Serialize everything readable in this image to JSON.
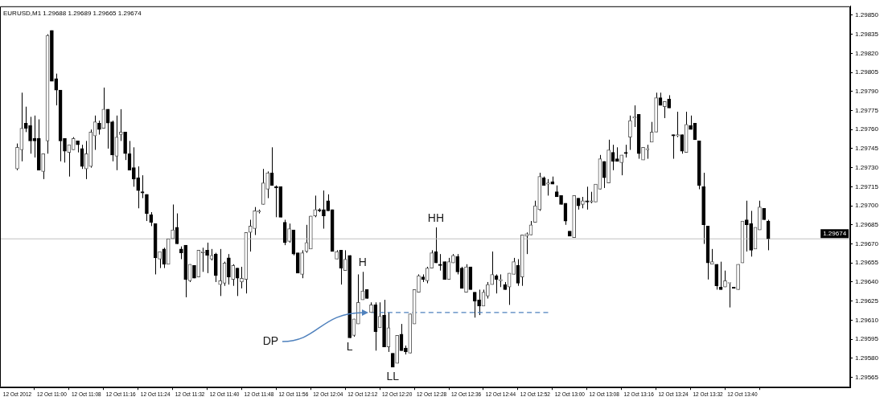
{
  "chart_data": {
    "type": "candlestick",
    "title": "EURUSD,M1 1.29688 1.29689 1.29665 1.29674",
    "color": "#000000",
    "x": [
      "2012-10-12T10:52",
      "2012-10-12T10:53",
      "2012-10-12T10:54",
      "2012-10-12T10:55",
      "2012-10-12T10:56",
      "2012-10-12T10:57",
      "2012-10-12T10:58",
      "2012-10-12T10:59",
      "2012-10-12T11:00",
      "2012-10-12T11:01",
      "2012-10-12T11:02",
      "2012-10-12T11:03",
      "2012-10-12T11:04",
      "2012-10-12T11:05",
      "2012-10-12T11:06",
      "2012-10-12T11:07",
      "2012-10-12T11:08",
      "2012-10-12T11:09",
      "2012-10-12T11:10",
      "2012-10-12T11:11",
      "2012-10-12T11:12",
      "2012-10-12T11:13",
      "2012-10-12T11:14",
      "2012-10-12T11:15",
      "2012-10-12T11:16",
      "2012-10-12T11:17",
      "2012-10-12T11:18",
      "2012-10-12T11:19",
      "2012-10-12T11:20",
      "2012-10-12T11:21",
      "2012-10-12T11:22",
      "2012-10-12T11:23",
      "2012-10-12T11:24",
      "2012-10-12T11:25",
      "2012-10-12T11:26",
      "2012-10-12T11:27",
      "2012-10-12T11:28",
      "2012-10-12T11:29",
      "2012-10-12T11:30",
      "2012-10-12T11:31",
      "2012-10-12T11:32",
      "2012-10-12T11:33",
      "2012-10-12T11:34",
      "2012-10-12T11:35",
      "2012-10-12T11:36",
      "2012-10-12T11:37",
      "2012-10-12T11:38",
      "2012-10-12T11:39",
      "2012-10-12T11:40",
      "2012-10-12T11:41",
      "2012-10-12T11:42",
      "2012-10-12T11:43",
      "2012-10-12T11:44",
      "2012-10-12T11:45",
      "2012-10-12T11:46",
      "2012-10-12T11:47",
      "2012-10-12T11:48",
      "2012-10-12T11:49",
      "2012-10-12T11:50",
      "2012-10-12T11:51",
      "2012-10-12T11:52",
      "2012-10-12T11:53",
      "2012-10-12T11:54",
      "2012-10-12T11:55",
      "2012-10-12T11:56",
      "2012-10-12T11:57",
      "2012-10-12T11:58",
      "2012-10-12T11:59",
      "2012-10-12T12:00",
      "2012-10-12T12:01",
      "2012-10-12T12:02",
      "2012-10-12T12:03",
      "2012-10-12T12:04",
      "2012-10-12T12:05",
      "2012-10-12T12:06",
      "2012-10-12T12:07",
      "2012-10-12T12:08",
      "2012-10-12T12:09",
      "2012-10-12T12:10",
      "2012-10-12T12:11",
      "2012-10-12T12:12",
      "2012-10-12T12:13",
      "2012-10-12T12:14",
      "2012-10-12T12:15",
      "2012-10-12T12:16",
      "2012-10-12T12:17",
      "2012-10-12T12:18",
      "2012-10-12T12:19",
      "2012-10-12T12:20",
      "2012-10-12T12:21",
      "2012-10-12T12:22",
      "2012-10-12T12:23",
      "2012-10-12T12:24",
      "2012-10-12T12:25",
      "2012-10-12T12:26",
      "2012-10-12T12:27",
      "2012-10-12T12:28",
      "2012-10-12T12:29",
      "2012-10-12T12:30",
      "2012-10-12T12:31",
      "2012-10-12T12:32",
      "2012-10-12T12:33",
      "2012-10-12T12:34",
      "2012-10-12T12:35",
      "2012-10-12T12:36",
      "2012-10-12T12:37",
      "2012-10-12T12:38",
      "2012-10-12T12:39",
      "2012-10-12T12:40",
      "2012-10-12T12:41",
      "2012-10-12T12:42",
      "2012-10-12T12:43",
      "2012-10-12T12:44",
      "2012-10-12T12:45",
      "2012-10-12T12:46",
      "2012-10-12T12:47",
      "2012-10-12T12:48",
      "2012-10-12T12:49",
      "2012-10-12T12:50",
      "2012-10-12T12:51",
      "2012-10-12T12:52",
      "2012-10-12T12:53",
      "2012-10-12T12:54",
      "2012-10-12T12:55",
      "2012-10-12T12:56",
      "2012-10-12T12:57",
      "2012-10-12T12:58",
      "2012-10-12T12:59",
      "2012-10-12T13:00",
      "2012-10-12T13:01",
      "2012-10-12T13:02",
      "2012-10-12T13:03",
      "2012-10-12T13:04",
      "2012-10-12T13:05",
      "2012-10-12T13:06",
      "2012-10-12T13:07",
      "2012-10-12T13:08",
      "2012-10-12T13:09",
      "2012-10-12T13:10",
      "2012-10-12T13:11",
      "2012-10-12T13:12",
      "2012-10-12T13:13",
      "2012-10-12T13:14",
      "2012-10-12T13:15",
      "2012-10-12T13:16",
      "2012-10-12T13:17",
      "2012-10-12T13:18",
      "2012-10-12T13:19",
      "2012-10-12T13:20",
      "2012-10-12T13:21",
      "2012-10-12T13:22",
      "2012-10-12T13:23",
      "2012-10-12T13:24",
      "2012-10-12T13:25",
      "2012-10-12T13:26",
      "2012-10-12T13:27",
      "2012-10-12T13:28",
      "2012-10-12T13:29",
      "2012-10-12T13:30",
      "2012-10-12T13:31",
      "2012-10-12T13:32",
      "2012-10-12T13:33",
      "2012-10-12T13:34",
      "2012-10-12T13:35",
      "2012-10-12T13:36",
      "2012-10-12T13:37",
      "2012-10-12T13:38",
      "2012-10-12T13:39",
      "2012-10-12T13:40",
      "2012-10-12T13:41",
      "2012-10-12T13:42",
      "2012-10-12T13:43",
      "2012-10-12T13:44",
      "2012-10-12T13:45",
      "2012-10-12T13:46"
    ],
    "ohlc": [
      [
        1.29729,
        1.29749,
        1.29728,
        1.29746
      ],
      [
        1.29744,
        1.29789,
        1.29735,
        1.29761
      ],
      [
        1.29765,
        1.29778,
        1.29758,
        1.29761
      ],
      [
        1.29763,
        1.2977,
        1.29741,
        1.29751
      ],
      [
        1.29753,
        1.29771,
        1.29738,
        1.29751
      ],
      [
        1.29753,
        1.29768,
        1.29728,
        1.29728
      ],
      [
        1.29727,
        1.29741,
        1.29721,
        1.29741
      ],
      [
        1.29751,
        1.29835,
        1.29741,
        1.29834
      ],
      [
        1.29838,
        1.29838,
        1.29798,
        1.29798
      ],
      [
        1.298,
        1.29804,
        1.29779,
        1.29791
      ],
      [
        1.29791,
        1.29791,
        1.29735,
        1.29751
      ],
      [
        1.29753,
        1.29753,
        1.29734,
        1.29743
      ],
      [
        1.29742,
        1.29748,
        1.29723,
        1.29748
      ],
      [
        1.29744,
        1.29754,
        1.29744,
        1.29753
      ],
      [
        1.29751,
        1.29751,
        1.29742,
        1.29748
      ],
      [
        1.29745,
        1.29748,
        1.29729,
        1.29731
      ],
      [
        1.29729,
        1.29751,
        1.29721,
        1.29741
      ],
      [
        1.29731,
        1.2976,
        1.2973,
        1.29758
      ],
      [
        1.29755,
        1.29771,
        1.29744,
        1.29766
      ],
      [
        1.29765,
        1.29767,
        1.29756,
        1.2976
      ],
      [
        1.29761,
        1.29793,
        1.29761,
        1.29776
      ],
      [
        1.29776,
        1.29776,
        1.29745,
        1.29765
      ],
      [
        1.29766,
        1.29767,
        1.29735,
        1.2974
      ],
      [
        1.29739,
        1.29771,
        1.29728,
        1.29754
      ],
      [
        1.29756,
        1.29776,
        1.29751,
        1.29758
      ],
      [
        1.29758,
        1.29758,
        1.29736,
        1.29741
      ],
      [
        1.29741,
        1.29751,
        1.29728,
        1.29728
      ],
      [
        1.2973,
        1.29746,
        1.29715,
        1.29721
      ],
      [
        1.29722,
        1.29731,
        1.29698,
        1.29712
      ],
      [
        1.29711,
        1.29724,
        1.29706,
        1.2971
      ],
      [
        1.29709,
        1.29709,
        1.29688,
        1.29694
      ],
      [
        1.29693,
        1.29695,
        1.29684,
        1.29687
      ],
      [
        1.29686,
        1.29686,
        1.29646,
        1.29659
      ],
      [
        1.29658,
        1.29664,
        1.29651,
        1.29664
      ],
      [
        1.29666,
        1.29667,
        1.29651,
        1.29654
      ],
      [
        1.29654,
        1.29674,
        1.29654,
        1.29674
      ],
      [
        1.29674,
        1.29701,
        1.29674,
        1.29681
      ],
      [
        1.29683,
        1.29694,
        1.2967,
        1.2967
      ],
      [
        1.29666,
        1.29668,
        1.29658,
        1.29663
      ],
      [
        1.29669,
        1.29669,
        1.29628,
        1.29642
      ],
      [
        1.29641,
        1.29654,
        1.2964,
        1.29654
      ],
      [
        1.29653,
        1.29653,
        1.29643,
        1.29643
      ],
      [
        1.29644,
        1.29665,
        1.29644,
        1.29665
      ],
      [
        1.29663,
        1.29667,
        1.29648,
        1.29664
      ],
      [
        1.29665,
        1.29671,
        1.29647,
        1.29661
      ],
      [
        1.29658,
        1.29666,
        1.29657,
        1.29661
      ],
      [
        1.29662,
        1.29663,
        1.2964,
        1.29645
      ],
      [
        1.29638,
        1.29666,
        1.29629,
        1.29641
      ],
      [
        1.29639,
        1.29656,
        1.29637,
        1.29655
      ],
      [
        1.29659,
        1.29662,
        1.29638,
        1.29644
      ],
      [
        1.29642,
        1.29654,
        1.29637,
        1.29653
      ],
      [
        1.29651,
        1.29651,
        1.29629,
        1.29643
      ],
      [
        1.2964,
        1.29652,
        1.29635,
        1.29643
      ],
      [
        1.29642,
        1.29679,
        1.29631,
        1.29679
      ],
      [
        1.29679,
        1.29689,
        1.29664,
        1.29684
      ],
      [
        1.29682,
        1.29699,
        1.29677,
        1.29696
      ],
      [
        1.29695,
        1.29697,
        1.29694,
        1.29696
      ],
      [
        1.29701,
        1.29729,
        1.29701,
        1.29718
      ],
      [
        1.29713,
        1.29727,
        1.29706,
        1.29726
      ],
      [
        1.29726,
        1.29746,
        1.29716,
        1.29716
      ],
      [
        1.29715,
        1.29716,
        1.29691,
        1.29714
      ],
      [
        1.29715,
        1.29715,
        1.29691,
        1.29691
      ],
      [
        1.29687,
        1.29689,
        1.29669,
        1.29671
      ],
      [
        1.29672,
        1.29686,
        1.29671,
        1.29682
      ],
      [
        1.29681,
        1.29681,
        1.29661,
        1.29662
      ],
      [
        1.29663,
        1.29663,
        1.29647,
        1.29647
      ],
      [
        1.29646,
        1.29665,
        1.29643,
        1.29663
      ],
      [
        1.29664,
        1.29685,
        1.29663,
        1.29671
      ],
      [
        1.29666,
        1.29692,
        1.29666,
        1.29692
      ],
      [
        1.29692,
        1.29708,
        1.29691,
        1.29697
      ],
      [
        1.29697,
        1.29698,
        1.29695,
        1.29696
      ],
      [
        1.29697,
        1.29712,
        1.29682,
        1.29692
      ],
      [
        1.29704,
        1.29709,
        1.29696,
        1.29696
      ],
      [
        1.29697,
        1.29697,
        1.29664,
        1.29664
      ],
      [
        1.29658,
        1.29665,
        1.29658,
        1.29664
      ],
      [
        1.29665,
        1.29665,
        1.29638,
        1.29651
      ],
      [
        1.29649,
        1.29665,
        1.29649,
        1.29658
      ],
      [
        1.29661,
        1.29661,
        1.29596,
        1.29596
      ],
      [
        1.29598,
        1.29611,
        1.29597,
        1.29611
      ],
      [
        1.29607,
        1.29646,
        1.29607,
        1.29624
      ],
      [
        1.29626,
        1.29648,
        1.29626,
        1.29633
      ],
      [
        1.29634,
        1.29634,
        1.29627,
        1.29627
      ],
      [
        1.29616,
        1.29624,
        1.29616,
        1.29622
      ],
      [
        1.29622,
        1.29624,
        1.29586,
        1.29601
      ],
      [
        1.29604,
        1.29624,
        1.29604,
        1.29613
      ],
      [
        1.29614,
        1.29626,
        1.29589,
        1.29589
      ],
      [
        1.29589,
        1.29616,
        1.29585,
        1.29604
      ],
      [
        1.29584,
        1.29584,
        1.29573,
        1.29573
      ],
      [
        1.29576,
        1.29598,
        1.29576,
        1.29598
      ],
      [
        1.29599,
        1.29607,
        1.29586,
        1.29586
      ],
      [
        1.29588,
        1.2959,
        1.29583,
        1.29585
      ],
      [
        1.29584,
        1.29615,
        1.29584,
        1.29615
      ],
      [
        1.29607,
        1.29634,
        1.29607,
        1.29634
      ],
      [
        1.29632,
        1.29646,
        1.29632,
        1.29645
      ],
      [
        1.29644,
        1.29646,
        1.2964,
        1.29642
      ],
      [
        1.29641,
        1.29652,
        1.29639,
        1.29651
      ],
      [
        1.29651,
        1.29665,
        1.29651,
        1.29663
      ],
      [
        1.29664,
        1.29683,
        1.29655,
        1.29655
      ],
      [
        1.29654,
        1.29662,
        1.29649,
        1.29653
      ],
      [
        1.29656,
        1.29656,
        1.29642,
        1.29642
      ],
      [
        1.29642,
        1.29659,
        1.29642,
        1.29656
      ],
      [
        1.29655,
        1.29662,
        1.29655,
        1.29661
      ],
      [
        1.2966,
        1.29662,
        1.29646,
        1.29648
      ],
      [
        1.29651,
        1.29652,
        1.29635,
        1.29635
      ],
      [
        1.29632,
        1.29654,
        1.29632,
        1.29652
      ],
      [
        1.29652,
        1.29652,
        1.29634,
        1.29634
      ],
      [
        1.29632,
        1.29632,
        1.29612,
        1.29625
      ],
      [
        1.29626,
        1.29634,
        1.29614,
        1.29621
      ],
      [
        1.29621,
        1.29634,
        1.29621,
        1.29632
      ],
      [
        1.29629,
        1.2964,
        1.29627,
        1.29638
      ],
      [
        1.29638,
        1.29664,
        1.29638,
        1.29646
      ],
      [
        1.29645,
        1.29646,
        1.29631,
        1.29642
      ],
      [
        1.29641,
        1.29646,
        1.29636,
        1.29642
      ],
      [
        1.29638,
        1.2964,
        1.29634,
        1.29634
      ],
      [
        1.29636,
        1.29647,
        1.29622,
        1.29647
      ],
      [
        1.29646,
        1.29659,
        1.29646,
        1.29656
      ],
      [
        1.29653,
        1.29658,
        1.29637,
        1.29639
      ],
      [
        1.29644,
        1.29677,
        1.29637,
        1.29677
      ],
      [
        1.29676,
        1.29679,
        1.29662,
        1.29678
      ],
      [
        1.29677,
        1.29688,
        1.29677,
        1.29685
      ],
      [
        1.29687,
        1.29704,
        1.29687,
        1.297
      ],
      [
        1.29697,
        1.29726,
        1.29696,
        1.29723
      ],
      [
        1.29722,
        1.29723,
        1.29716,
        1.29716
      ],
      [
        1.29717,
        1.29721,
        1.29708,
        1.29718
      ],
      [
        1.29719,
        1.29723,
        1.29717,
        1.29717
      ],
      [
        1.29711,
        1.29716,
        1.29707,
        1.29707
      ],
      [
        1.29708,
        1.29708,
        1.29701,
        1.29701
      ],
      [
        1.29702,
        1.29702,
        1.29685,
        1.29688
      ],
      [
        1.2968,
        1.2968,
        1.29676,
        1.29676
      ],
      [
        1.29675,
        1.29708,
        1.29675,
        1.29708
      ],
      [
        1.29706,
        1.29706,
        1.29697,
        1.297
      ],
      [
        1.29701,
        1.29707,
        1.29698,
        1.29704
      ],
      [
        1.29704,
        1.29715,
        1.29697,
        1.29703
      ],
      [
        1.29703,
        1.29711,
        1.29702,
        1.29704
      ],
      [
        1.29703,
        1.29717,
        1.29703,
        1.29717
      ],
      [
        1.29713,
        1.2974,
        1.29713,
        1.29737
      ],
      [
        1.29735,
        1.29735,
        1.29714,
        1.29722
      ],
      [
        1.29718,
        1.29752,
        1.29718,
        1.29744
      ],
      [
        1.29742,
        1.29748,
        1.29728,
        1.29735
      ],
      [
        1.29737,
        1.29746,
        1.29735,
        1.29735
      ],
      [
        1.29734,
        1.2974,
        1.29724,
        1.2974
      ],
      [
        1.29742,
        1.29748,
        1.29738,
        1.29741
      ],
      [
        1.29754,
        1.29771,
        1.29744,
        1.29767
      ],
      [
        1.29769,
        1.29779,
        1.29762,
        1.2977
      ],
      [
        1.29772,
        1.29772,
        1.29737,
        1.29741
      ],
      [
        1.29736,
        1.29746,
        1.29736,
        1.29746
      ],
      [
        1.29744,
        1.29748,
        1.29737,
        1.29745
      ],
      [
        1.2975,
        1.29766,
        1.2975,
        1.29758
      ],
      [
        1.29758,
        1.29789,
        1.29758,
        1.29785
      ],
      [
        1.29785,
        1.29789,
        1.29779,
        1.29779
      ],
      [
        1.29778,
        1.29782,
        1.29769,
        1.29782
      ],
      [
        1.29784,
        1.29787,
        1.29777,
        1.29777
      ],
      [
        1.29756,
        1.29756,
        1.29737,
        1.29755
      ],
      [
        1.29755,
        1.29774,
        1.29754,
        1.29756
      ],
      [
        1.29756,
        1.29756,
        1.29741,
        1.29743
      ],
      [
        1.29742,
        1.29774,
        1.29742,
        1.29764
      ],
      [
        1.29763,
        1.29771,
        1.2976,
        1.2976
      ],
      [
        1.29765,
        1.29765,
        1.29752,
        1.29752
      ],
      [
        1.29751,
        1.29751,
        1.29713,
        1.29716
      ],
      [
        1.29715,
        1.29726,
        1.2967,
        1.29685
      ],
      [
        1.29684,
        1.29684,
        1.29642,
        1.29655
      ],
      [
        1.29654,
        1.29666,
        1.29654,
        1.29656
      ],
      [
        1.29654,
        1.29654,
        1.29634,
        1.29637
      ],
      [
        1.29636,
        1.29656,
        1.29634,
        1.29634
      ],
      [
        1.29636,
        1.29649,
        1.29636,
        1.29641
      ],
      [
        1.29639,
        1.29639,
        1.2962,
        1.29639
      ],
      [
        1.29636,
        1.29636,
        1.29635,
        1.29635
      ],
      [
        1.29634,
        1.29654,
        1.29634,
        1.29654
      ],
      [
        1.29655,
        1.29688,
        1.29655,
        1.29688
      ],
      [
        1.29689,
        1.29704,
        1.29664,
        1.29685
      ],
      [
        1.29686,
        1.29696,
        1.2966,
        1.29665
      ],
      [
        1.29666,
        1.29683,
        1.29666,
        1.29683
      ],
      [
        1.29681,
        1.29704,
        1.29681,
        1.29699
      ],
      [
        1.29698,
        1.29698,
        1.29689,
        1.29689
      ],
      [
        1.29688,
        1.29689,
        1.29665,
        1.29674
      ]
    ],
    "colors": [
      "#595959",
      "#595959",
      "#000000",
      "#000000",
      "#000000",
      "#000000",
      "#595959",
      "#595959",
      "#000000",
      "#000000",
      "#000000",
      "#000000",
      "#595959",
      "#595959",
      "#000000",
      "#000000",
      "#595959",
      "#595959",
      "#595959",
      "#000000",
      "#595959",
      "#000000",
      "#000000",
      "#595959",
      "#595959",
      "#000000",
      "#000000",
      "#000000",
      "#000000",
      "#000000",
      "#000000",
      "#000000",
      "#000000",
      "#595959",
      "#000000",
      "#595959",
      "#595959",
      "#000000",
      "#000000",
      "#000000",
      "#595959",
      "#000000",
      "#595959",
      "#595959",
      "#000000",
      "#595959",
      "#000000",
      "#595959",
      "#595959",
      "#000000",
      "#595959",
      "#000000",
      "#595959",
      "#595959",
      "#595959",
      "#595959",
      "#595959",
      "#595959",
      "#595959",
      "#000000",
      "#000000",
      "#000000",
      "#000000",
      "#595959",
      "#000000",
      "#000000",
      "#595959",
      "#595959",
      "#595959",
      "#595959",
      "#000000",
      "#000000",
      "#000000",
      "#000000",
      "#595959",
      "#000000",
      "#595959",
      "#000000",
      "#595959",
      "#595959",
      "#595959",
      "#000000",
      "#595959",
      "#000000",
      "#595959",
      "#000000",
      "#595959",
      "#000000",
      "#595959",
      "#000000",
      "#000000",
      "#595959",
      "#595959",
      "#595959",
      "#000000",
      "#595959",
      "#595959",
      "#000000",
      "#000000",
      "#000000",
      "#595959",
      "#595959",
      "#000000",
      "#000000",
      "#595959",
      "#000000",
      "#000000",
      "#000000",
      "#595959",
      "#595959",
      "#595959",
      "#000000",
      "#595959",
      "#000000",
      "#595959",
      "#595959",
      "#000000",
      "#595959",
      "#595959",
      "#595959",
      "#595959",
      "#595959",
      "#000000",
      "#595959",
      "#000000",
      "#000000",
      "#000000",
      "#000000",
      "#000000",
      "#595959",
      "#000000",
      "#595959",
      "#000000",
      "#595959",
      "#595959",
      "#595959",
      "#000000",
      "#595959",
      "#000000",
      "#000000",
      "#595959",
      "#000000",
      "#595959",
      "#595959",
      "#000000",
      "#595959",
      "#595959",
      "#595959",
      "#595959",
      "#000000",
      "#595959",
      "#000000",
      "#000000",
      "#595959",
      "#000000",
      "#595959",
      "#000000",
      "#000000",
      "#000000",
      "#000000",
      "#000000",
      "#595959",
      "#000000",
      "#000000",
      "#595959",
      "#595959",
      "#000000",
      "#595959",
      "#595959",
      "#000000",
      "#000000",
      "#595959",
      "#595959",
      "#000000",
      "#000000"
    ],
    "series": [
      {
        "type": "line",
        "x": [
          "2012-10-12T12:14",
          "2012-10-12T12:55"
        ],
        "values": [
          1.29616,
          1.29616
        ],
        "color": "#4f81bd",
        "line_style": "dashed",
        "marker": "none"
      }
    ],
    "xlim": [
      "2012-10-12T10:48",
      "2012-10-12T14:05"
    ],
    "xticks": [
      {
        "value": "2012-10-12T10:52",
        "label": "12 Oct 2012"
      },
      {
        "value": "2012-10-12T11:00",
        "label": "12 Oct 11:00"
      },
      {
        "value": "2012-10-12T11:08",
        "label": "12 Oct 11:08"
      },
      {
        "value": "2012-10-12T11:16",
        "label": "12 Oct 11:16"
      },
      {
        "value": "2012-10-12T11:24",
        "label": "12 Oct 11:24"
      },
      {
        "value": "2012-10-12T11:32",
        "label": "12 Oct 11:32"
      },
      {
        "value": "2012-10-12T11:40",
        "label": "12 Oct 11:40"
      },
      {
        "value": "2012-10-12T11:48",
        "label": "12 Oct 11:48"
      },
      {
        "value": "2012-10-12T11:56",
        "label": "12 Oct 11:56"
      },
      {
        "value": "2012-10-12T12:04",
        "label": "12 Oct 12:04"
      },
      {
        "value": "2012-10-12T12:12",
        "label": "12 Oct 12:12"
      },
      {
        "value": "2012-10-12T12:20",
        "label": "12 Oct 12:20"
      },
      {
        "value": "2012-10-12T12:28",
        "label": "12 Oct 12:28"
      },
      {
        "value": "2012-10-12T12:36",
        "label": "12 Oct 12:36"
      },
      {
        "value": "2012-10-12T12:44",
        "label": "12 Oct 12:44"
      },
      {
        "value": "2012-10-12T12:52",
        "label": "12 Oct 12:52"
      },
      {
        "value": "2012-10-12T13:00",
        "label": "12 Oct 13:00"
      },
      {
        "value": "2012-10-12T13:08",
        "label": "12 Oct 13:08"
      },
      {
        "value": "2012-10-12T13:16",
        "label": "12 Oct 13:16"
      },
      {
        "value": "2012-10-12T13:24",
        "label": "12 Oct 13:24"
      },
      {
        "value": "2012-10-12T13:32",
        "label": "12 Oct 13:32"
      },
      {
        "value": "2012-10-12T13:40",
        "label": "12 Oct 13:40"
      }
    ],
    "ylim": [
      1.29557,
      1.29857
    ],
    "yticks": [
      1.29565,
      {
        "value": 1.2958,
        "label": "1.29580"
      },
      1.29595,
      {
        "value": 1.2961,
        "label": "1.29610"
      },
      1.29625,
      {
        "value": 1.2964,
        "label": "1.29640"
      },
      1.29655,
      {
        "value": 1.2967,
        "label": "1.29670"
      },
      1.29685,
      {
        "value": 1.297,
        "label": "1.29700"
      },
      1.29715,
      {
        "value": 1.2973,
        "label": "1.29730"
      },
      1.29745,
      {
        "value": 1.2976,
        "label": "1.29760"
      },
      1.29775,
      {
        "value": 1.2979,
        "label": "1.29790"
      },
      1.29805,
      {
        "value": 1.2982,
        "label": "1.29820"
      },
      1.29835,
      {
        "value": 1.2985,
        "label": "1.29850"
      }
    ],
    "ref_lines": [
      {
        "axis": "y",
        "value": 1.29674,
        "label": "1.29674",
        "color": "#c0c0c0"
      }
    ],
    "annotations": [
      {
        "text": "H",
        "x": "2012-10-12T12:12",
        "y": 1.29648
      },
      {
        "text": "L",
        "x": "2012-10-12T12:09",
        "y": 1.29596
      },
      {
        "text": "LL",
        "x": "2012-10-12T12:19",
        "y": 1.29573
      },
      {
        "text": "HH",
        "x": "2012-10-12T12:29",
        "y": 1.29683
      },
      "DP"
    ],
    "grid": false,
    "legend": false
  }
}
